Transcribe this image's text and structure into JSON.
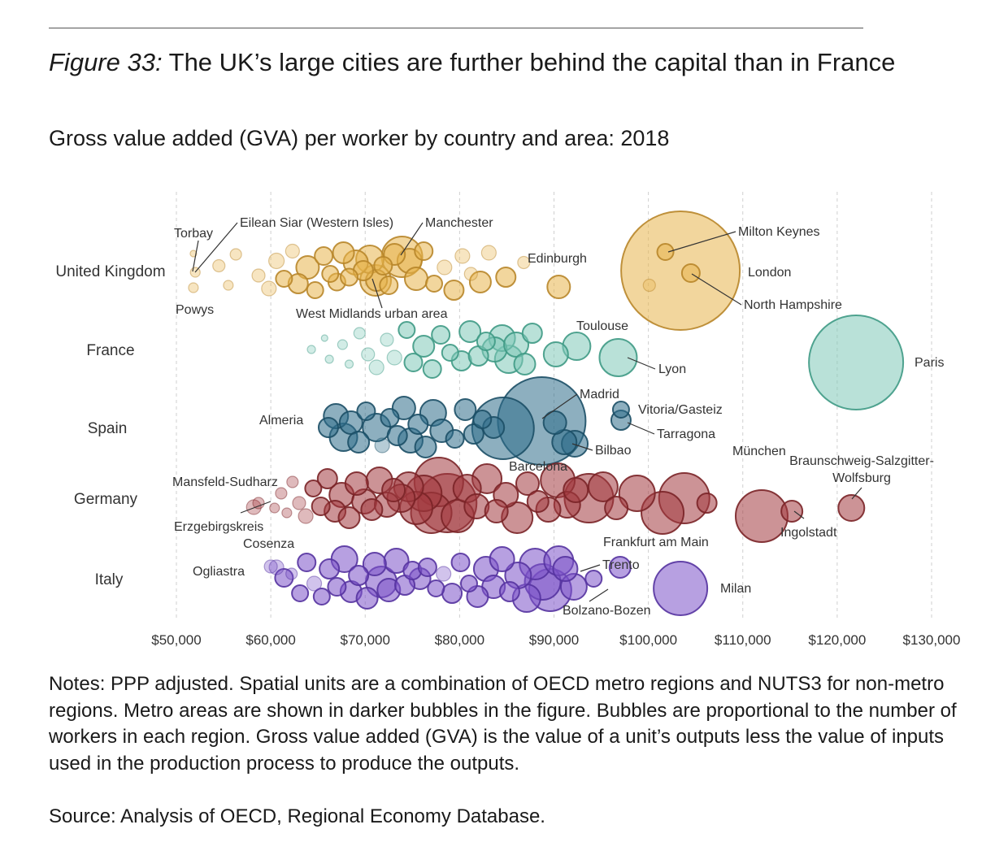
{
  "title_lead": "Figure 33:",
  "title_rest": " The UK’s large cities are further behind the capital than in France",
  "subtitle": "Gross value added (GVA) per worker by country and area: 2018",
  "notes": "Notes: PPP adjusted. Spatial units are a combination of OECD metro regions and NUTS3 for non-metro regions. Metro areas are shown in darker bubbles in the figure. Bubbles are proportional to the number of workers in each region. Gross value added (GVA) is the value of a unit’s outputs less the value of inputs used in the production process to produce the outputs.",
  "source": "Source: Analysis of OECD, Regional Economy Database.",
  "colors": {
    "uk": "#e8b44c",
    "uk_stroke": "#b8862a",
    "france": "#7fc9b8",
    "france_stroke": "#3f9a85",
    "spain": "#2f6e8a",
    "spain_stroke": "#1c4f66",
    "germany": "#a33a3f",
    "germany_stroke": "#7a2427",
    "italy": "#7b52c9",
    "italy_stroke": "#5533a0",
    "grid": "#cfcfcf",
    "leader": "#333333"
  },
  "chart_data": {
    "type": "scatter",
    "x_format": "currency",
    "xlim": [
      50000,
      130000
    ],
    "x_ticks": [
      "$50,000",
      "$60,000",
      "$70,000",
      "$80,000",
      "$90,000",
      "$100,000",
      "$110,000",
      "$120,000",
      "$130,000"
    ],
    "x_tick_values": [
      50000,
      60000,
      70000,
      80000,
      90000,
      100000,
      110000,
      120000,
      130000
    ],
    "grid": "vertical dashed",
    "categories": [
      "United Kingdom",
      "France",
      "Spain",
      "Germany",
      "Italy"
    ],
    "series": [
      {
        "name": "United Kingdom",
        "color_key": "uk",
        "points": [
          {
            "x": 51800,
            "size": 8,
            "label": "Torbay"
          },
          {
            "x": 51800,
            "size": 12,
            "label": "Powys"
          },
          {
            "x": 52000,
            "size": 12,
            "label": "Eilean Siar (Western Isles)"
          },
          {
            "x": 54500,
            "size": 15
          },
          {
            "x": 55500,
            "size": 12
          },
          {
            "x": 56300,
            "size": 14
          },
          {
            "x": 58700,
            "size": 16
          },
          {
            "x": 59800,
            "size": 18
          },
          {
            "x": 60600,
            "size": 19
          },
          {
            "x": 61400,
            "size": 20
          },
          {
            "x": 62300,
            "size": 17
          },
          {
            "x": 62900,
            "size": 24
          },
          {
            "x": 63900,
            "size": 28
          },
          {
            "x": 64700,
            "size": 20
          },
          {
            "x": 65600,
            "size": 22
          },
          {
            "x": 66300,
            "size": 20
          },
          {
            "x": 67000,
            "size": 21
          },
          {
            "x": 67700,
            "size": 26
          },
          {
            "x": 68300,
            "size": 21
          },
          {
            "x": 69000,
            "size": 30
          },
          {
            "x": 69800,
            "size": 24
          },
          {
            "x": 70500,
            "size": 34
          },
          {
            "x": 71200,
            "size": 26
          },
          {
            "x": 71900,
            "size": 22
          },
          {
            "x": 72500,
            "size": 22
          },
          {
            "x": 73100,
            "size": 26
          },
          {
            "x": 73900,
            "size": 50,
            "label": "Manchester"
          },
          {
            "x": 71100,
            "size": 38,
            "label": "West Midlands urban area"
          },
          {
            "x": 74700,
            "size": 30
          },
          {
            "x": 75400,
            "size": 28
          },
          {
            "x": 76200,
            "size": 22
          },
          {
            "x": 77300,
            "size": 20
          },
          {
            "x": 78400,
            "size": 18
          },
          {
            "x": 79400,
            "size": 24
          },
          {
            "x": 80300,
            "size": 18
          },
          {
            "x": 81200,
            "size": 16
          },
          {
            "x": 82200,
            "size": 26
          },
          {
            "x": 83100,
            "size": 18
          },
          {
            "x": 84900,
            "size": 24
          },
          {
            "x": 86800,
            "size": 15
          },
          {
            "x": 90500,
            "size": 28,
            "label": "Edinburgh"
          },
          {
            "x": 103400,
            "size": 146,
            "label": "London"
          },
          {
            "x": 101800,
            "size": 20,
            "label": "Milton Keynes"
          },
          {
            "x": 104500,
            "size": 22,
            "label": "North Hampshire"
          },
          {
            "x": 100100,
            "size": 15
          }
        ]
      },
      {
        "name": "France",
        "color_key": "france",
        "points": [
          {
            "x": 64300,
            "size": 10
          },
          {
            "x": 65700,
            "size": 8
          },
          {
            "x": 66200,
            "size": 10
          },
          {
            "x": 67600,
            "size": 12
          },
          {
            "x": 68300,
            "size": 10
          },
          {
            "x": 69400,
            "size": 14
          },
          {
            "x": 70300,
            "size": 16
          },
          {
            "x": 71200,
            "size": 18
          },
          {
            "x": 72300,
            "size": 16
          },
          {
            "x": 73100,
            "size": 18
          },
          {
            "x": 74400,
            "size": 20
          },
          {
            "x": 75100,
            "size": 22
          },
          {
            "x": 76200,
            "size": 26
          },
          {
            "x": 77100,
            "size": 22
          },
          {
            "x": 78000,
            "size": 22
          },
          {
            "x": 79000,
            "size": 20
          },
          {
            "x": 80200,
            "size": 24
          },
          {
            "x": 81100,
            "size": 26
          },
          {
            "x": 82000,
            "size": 24
          },
          {
            "x": 82800,
            "size": 22
          },
          {
            "x": 83700,
            "size": 30
          },
          {
            "x": 84500,
            "size": 32
          },
          {
            "x": 85200,
            "size": 34
          },
          {
            "x": 86000,
            "size": 30
          },
          {
            "x": 86900,
            "size": 26
          },
          {
            "x": 87700,
            "size": 24
          },
          {
            "x": 90200,
            "size": 30
          },
          {
            "x": 92400,
            "size": 34,
            "label": "Toulouse"
          },
          {
            "x": 96800,
            "size": 46,
            "label": "Lyon"
          },
          {
            "x": 122000,
            "size": 116,
            "label": "Paris"
          }
        ]
      },
      {
        "name": "Spain",
        "color_key": "spain",
        "points": [
          {
            "x": 66100,
            "size": 24
          },
          {
            "x": 66900,
            "size": 30
          },
          {
            "x": 67700,
            "size": 34
          },
          {
            "x": 68500,
            "size": 28
          },
          {
            "x": 69300,
            "size": 26
          },
          {
            "x": 70100,
            "size": 22
          },
          {
            "x": 71200,
            "size": 34,
            "label": "Almeria"
          },
          {
            "x": 71800,
            "size": 18
          },
          {
            "x": 72600,
            "size": 22
          },
          {
            "x": 73400,
            "size": 24
          },
          {
            "x": 74100,
            "size": 28
          },
          {
            "x": 74800,
            "size": 30
          },
          {
            "x": 75600,
            "size": 24
          },
          {
            "x": 76400,
            "size": 26
          },
          {
            "x": 77200,
            "size": 32
          },
          {
            "x": 78100,
            "size": 28
          },
          {
            "x": 79500,
            "size": 22
          },
          {
            "x": 80600,
            "size": 26
          },
          {
            "x": 81500,
            "size": 24
          },
          {
            "x": 82400,
            "size": 22
          },
          {
            "x": 83600,
            "size": 26
          },
          {
            "x": 84600,
            "size": 76,
            "label": "Barcelona"
          },
          {
            "x": 88700,
            "size": 108,
            "label": "Madrid"
          },
          {
            "x": 90100,
            "size": 28
          },
          {
            "x": 91100,
            "size": 30
          },
          {
            "x": 92200,
            "size": 32,
            "label": "Bilbao"
          },
          {
            "x": 97100,
            "size": 20,
            "label": "Vitoria/Gasteiz"
          },
          {
            "x": 97100,
            "size": 24,
            "label": "Tarragona"
          }
        ]
      },
      {
        "name": "Germany",
        "color_key": "germany",
        "points": [
          {
            "x": 58200,
            "size": 18,
            "label": "Mansfeld-Sudharz"
          },
          {
            "x": 58700,
            "size": 14,
            "label": "Erzgebirgskreis"
          },
          {
            "x": 60400,
            "size": 12
          },
          {
            "x": 61100,
            "size": 14
          },
          {
            "x": 61700,
            "size": 12
          },
          {
            "x": 62300,
            "size": 14
          },
          {
            "x": 63000,
            "size": 16
          },
          {
            "x": 63700,
            "size": 18
          },
          {
            "x": 64500,
            "size": 20
          },
          {
            "x": 65300,
            "size": 22
          },
          {
            "x": 66000,
            "size": 24
          },
          {
            "x": 66800,
            "size": 26
          },
          {
            "x": 67500,
            "size": 30
          },
          {
            "x": 68300,
            "size": 26
          },
          {
            "x": 69100,
            "size": 28
          },
          {
            "x": 69900,
            "size": 30
          },
          {
            "x": 70700,
            "size": 26
          },
          {
            "x": 71500,
            "size": 32
          },
          {
            "x": 72300,
            "size": 30
          },
          {
            "x": 73000,
            "size": 28
          },
          {
            "x": 73800,
            "size": 34
          },
          {
            "x": 74600,
            "size": 36
          },
          {
            "x": 75400,
            "size": 40
          },
          {
            "x": 76200,
            "size": 44
          },
          {
            "x": 77000,
            "size": 50
          },
          {
            "x": 77800,
            "size": 60
          },
          {
            "x": 78700,
            "size": 72
          },
          {
            "x": 79800,
            "size": 40
          },
          {
            "x": 80800,
            "size": 34
          },
          {
            "x": 81800,
            "size": 30
          },
          {
            "x": 82900,
            "size": 36
          },
          {
            "x": 83900,
            "size": 28
          },
          {
            "x": 84900,
            "size": 30
          },
          {
            "x": 86100,
            "size": 38
          },
          {
            "x": 87200,
            "size": 28
          },
          {
            "x": 88300,
            "size": 26
          },
          {
            "x": 89400,
            "size": 30
          },
          {
            "x": 90400,
            "size": 42
          },
          {
            "x": 91400,
            "size": 32
          },
          {
            "x": 92300,
            "size": 30
          },
          {
            "x": 93700,
            "size": 60,
            "label": "Frankfurt am Main"
          },
          {
            "x": 95200,
            "size": 36
          },
          {
            "x": 96600,
            "size": 28
          },
          {
            "x": 98800,
            "size": 44
          },
          {
            "x": 101500,
            "size": 52
          },
          {
            "x": 103800,
            "size": 62,
            "label": "München"
          },
          {
            "x": 106200,
            "size": 24
          },
          {
            "x": 112000,
            "size": 64
          },
          {
            "x": 115200,
            "size": 26,
            "label": "Ingolstadt"
          },
          {
            "x": 121500,
            "size": 32,
            "label": "Braunschweig-Salzgitter-Wolfsburg"
          }
        ]
      },
      {
        "name": "Italy",
        "color_key": "italy",
        "points": [
          {
            "x": 60000,
            "size": 16,
            "label": "Ogliastra"
          },
          {
            "x": 60600,
            "size": 18
          },
          {
            "x": 61400,
            "size": 22,
            "label": "Cosenza"
          },
          {
            "x": 62200,
            "size": 14
          },
          {
            "x": 63100,
            "size": 20
          },
          {
            "x": 63800,
            "size": 22
          },
          {
            "x": 64600,
            "size": 18
          },
          {
            "x": 65400,
            "size": 20
          },
          {
            "x": 66200,
            "size": 24
          },
          {
            "x": 67000,
            "size": 22
          },
          {
            "x": 67800,
            "size": 32
          },
          {
            "x": 68500,
            "size": 26
          },
          {
            "x": 69300,
            "size": 24
          },
          {
            "x": 70200,
            "size": 26
          },
          {
            "x": 71000,
            "size": 28
          },
          {
            "x": 71700,
            "size": 38
          },
          {
            "x": 72500,
            "size": 28
          },
          {
            "x": 73300,
            "size": 30
          },
          {
            "x": 74200,
            "size": 24
          },
          {
            "x": 75000,
            "size": 22
          },
          {
            "x": 75800,
            "size": 26
          },
          {
            "x": 76600,
            "size": 22
          },
          {
            "x": 77500,
            "size": 20
          },
          {
            "x": 78300,
            "size": 18
          },
          {
            "x": 79200,
            "size": 24
          },
          {
            "x": 80100,
            "size": 22
          },
          {
            "x": 81000,
            "size": 20
          },
          {
            "x": 81900,
            "size": 26
          },
          {
            "x": 82800,
            "size": 30
          },
          {
            "x": 83600,
            "size": 28
          },
          {
            "x": 84500,
            "size": 30
          },
          {
            "x": 85300,
            "size": 24
          },
          {
            "x": 86200,
            "size": 32
          },
          {
            "x": 87100,
            "size": 34
          },
          {
            "x": 88000,
            "size": 38
          },
          {
            "x": 88800,
            "size": 44
          },
          {
            "x": 89600,
            "size": 52
          },
          {
            "x": 90500,
            "size": 36
          },
          {
            "x": 91200,
            "size": 30,
            "label": "Trento"
          },
          {
            "x": 92100,
            "size": 32,
            "label": "Bolzano-Bozen"
          },
          {
            "x": 94200,
            "size": 20
          },
          {
            "x": 97000,
            "size": 26
          },
          {
            "x": 103400,
            "size": 66,
            "label": "Milan"
          }
        ]
      }
    ]
  }
}
